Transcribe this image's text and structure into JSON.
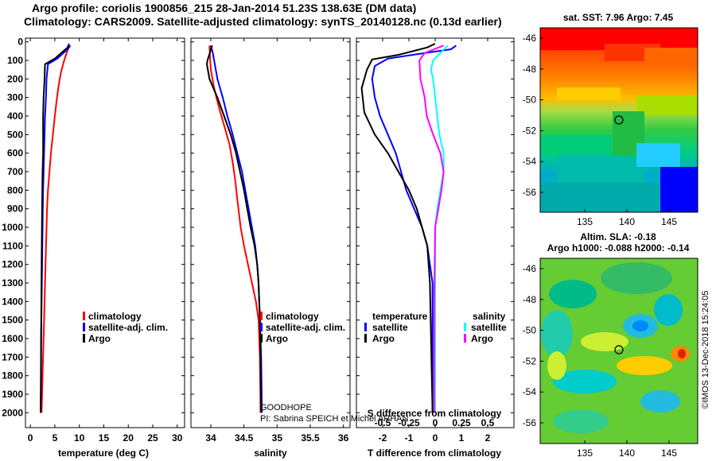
{
  "header": {
    "line1": "Argo profile: coriolis 1900856_215 28-Jan-2014 51.23S 138.63E (DM data)",
    "line2": "Climatology: CARS2009. Satellite-adjusted climatology: synTS_20140128.nc (0.13d earlier)"
  },
  "maps": {
    "sst_title": "sat. SST: 7.96 Argo: 7.45",
    "sla_title1": "Altim. SLA: -0.18",
    "sla_title2": "Argo h1000: -0.088 h2000: -0.14",
    "lat_ticks": [
      "-46",
      "-48",
      "-50",
      "-52",
      "-54",
      "-56"
    ],
    "lon_ticks": [
      "135",
      "140",
      "145"
    ],
    "watermark": "©IMOS 13-Dec-2018 15:24:05"
  },
  "chart_data": [
    {
      "type": "line",
      "title": "",
      "xlabel": "temperature (deg C)",
      "ylabel": "",
      "xlim": [
        -1,
        31.5
      ],
      "ylim": [
        2080,
        -20
      ],
      "x_ticks": [
        0,
        5,
        10,
        15,
        20,
        25,
        30
      ],
      "y_ticks": [
        0,
        100,
        200,
        300,
        400,
        500,
        600,
        700,
        800,
        900,
        1000,
        1100,
        1200,
        1300,
        1400,
        1500,
        1600,
        1700,
        1800,
        1900,
        2000
      ],
      "legend": [
        "climatology",
        "satellite-adj. clim.",
        "Argo"
      ],
      "legend_position": "lower-right",
      "series": [
        {
          "name": "climatology",
          "color": "#ff0000",
          "points": [
            [
              8.0,
              20
            ],
            [
              7.4,
              60
            ],
            [
              6.8,
              110
            ],
            [
              6.2,
              170
            ],
            [
              5.7,
              250
            ],
            [
              5.3,
              330
            ],
            [
              5.0,
              400
            ],
            [
              4.6,
              500
            ],
            [
              4.2,
              600
            ],
            [
              3.9,
              700
            ],
            [
              3.6,
              800
            ],
            [
              3.4,
              900
            ],
            [
              3.3,
              1000
            ],
            [
              3.1,
              1200
            ],
            [
              2.9,
              1400
            ],
            [
              2.7,
              1600
            ],
            [
              2.5,
              1800
            ],
            [
              2.3,
              2000
            ]
          ]
        },
        {
          "name": "satellite-adj. clim.",
          "color": "#0000ff",
          "points": [
            [
              8.2,
              20
            ],
            [
              7.6,
              40
            ],
            [
              5.5,
              90
            ],
            [
              3.6,
              120
            ],
            [
              3.3,
              200
            ],
            [
              3.2,
              300
            ],
            [
              3.0,
              400
            ],
            [
              2.9,
              500
            ],
            [
              2.8,
              600
            ],
            [
              2.7,
              700
            ],
            [
              2.6,
              800
            ],
            [
              2.5,
              1000
            ],
            [
              2.4,
              1200
            ],
            [
              2.3,
              1400
            ],
            [
              2.2,
              1600
            ],
            [
              2.2,
              1800
            ],
            [
              2.1,
              2000
            ]
          ]
        },
        {
          "name": "Argo",
          "color": "#000000",
          "points": [
            [
              7.9,
              10
            ],
            [
              7.6,
              30
            ],
            [
              5.0,
              90
            ],
            [
              3.0,
              120
            ],
            [
              2.9,
              200
            ],
            [
              2.7,
              300
            ],
            [
              2.6,
              400
            ],
            [
              2.6,
              600
            ],
            [
              2.5,
              700
            ],
            [
              2.4,
              900
            ],
            [
              2.3,
              1200
            ],
            [
              2.2,
              1600
            ],
            [
              2.1,
              2000
            ]
          ]
        }
      ]
    },
    {
      "type": "line",
      "title": "",
      "xlabel": "salinity",
      "ylabel": "",
      "xlim": [
        33.7,
        36.1
      ],
      "ylim": [
        2080,
        -20
      ],
      "x_ticks": [
        34,
        34.5,
        35,
        35.5,
        36
      ],
      "legend": [
        "climatology",
        "satellite-adj. clim.",
        "Argo"
      ],
      "legend_position": "lower-right",
      "annotations": [
        "GOODHOPE",
        "PI: Sabrina SPEICH et Michel ARHAN"
      ],
      "series": [
        {
          "name": "climatology",
          "color": "#ff0000",
          "points": [
            [
              33.98,
              20
            ],
            [
              33.99,
              100
            ],
            [
              34.0,
              150
            ],
            [
              34.05,
              250
            ],
            [
              34.12,
              350
            ],
            [
              34.2,
              450
            ],
            [
              34.28,
              550
            ],
            [
              34.33,
              650
            ],
            [
              34.37,
              750
            ],
            [
              34.4,
              850
            ],
            [
              34.45,
              1000
            ],
            [
              34.5,
              1100
            ],
            [
              34.56,
              1200
            ],
            [
              34.62,
              1300
            ],
            [
              34.68,
              1400
            ],
            [
              34.72,
              1500
            ],
            [
              34.74,
              1700
            ],
            [
              34.75,
              2000
            ]
          ]
        },
        {
          "name": "satellite-adj. clim.",
          "color": "#0000ff",
          "points": [
            [
              34.0,
              20
            ],
            [
              34.03,
              60
            ],
            [
              34.06,
              120
            ],
            [
              34.1,
              200
            ],
            [
              34.18,
              300
            ],
            [
              34.25,
              400
            ],
            [
              34.33,
              500
            ],
            [
              34.4,
              600
            ],
            [
              34.47,
              700
            ],
            [
              34.52,
              800
            ],
            [
              34.57,
              900
            ],
            [
              34.62,
              1000
            ],
            [
              34.67,
              1100
            ],
            [
              34.7,
              1200
            ],
            [
              34.72,
              1300
            ],
            [
              34.74,
              1500
            ],
            [
              34.76,
              1700
            ],
            [
              34.77,
              2000
            ]
          ]
        },
        {
          "name": "Argo",
          "color": "#000000",
          "points": [
            [
              34.02,
              20
            ],
            [
              33.95,
              100
            ],
            [
              33.94,
              120
            ],
            [
              33.98,
              200
            ],
            [
              34.1,
              300
            ],
            [
              34.2,
              400
            ],
            [
              34.3,
              500
            ],
            [
              34.38,
              600
            ],
            [
              34.44,
              700
            ],
            [
              34.5,
              800
            ],
            [
              34.55,
              900
            ],
            [
              34.6,
              1000
            ],
            [
              34.66,
              1100
            ],
            [
              34.7,
              1200
            ],
            [
              34.72,
              1300
            ],
            [
              34.74,
              1500
            ],
            [
              34.75,
              1700
            ],
            [
              34.76,
              2000
            ]
          ]
        }
      ]
    },
    {
      "type": "line",
      "title": "",
      "xlabel": "T difference from climatology",
      "ylabel": "",
      "xlim": [
        -3,
        3
      ],
      "ylim": [
        2080,
        -20
      ],
      "x_ticks": [
        -2,
        -1,
        0,
        1,
        2
      ],
      "secondary_axis": {
        "label": "S difference from climatology",
        "ticks": [
          "-0.5",
          "-0.25",
          "0",
          "0.25",
          "0.5"
        ],
        "tick_values": [
          -0.5,
          -0.25,
          0,
          0.25,
          0.5
        ],
        "xlim": [
          -0.75,
          0.75
        ]
      },
      "legend": [
        "temperature",
        "satellite",
        "Argo",
        "salinity",
        "satellite",
        "Argo"
      ],
      "legend_position": "lower",
      "series": [
        {
          "name": "temperature satellite",
          "color": "#0000ff",
          "points": [
            [
              0.8,
              20
            ],
            [
              0.6,
              40
            ],
            [
              -0.4,
              60
            ],
            [
              -1.8,
              90
            ],
            [
              -2.3,
              130
            ],
            [
              -2.4,
              200
            ],
            [
              -2.3,
              300
            ],
            [
              -2.1,
              400
            ],
            [
              -1.8,
              500
            ],
            [
              -1.5,
              600
            ],
            [
              -1.3,
              700
            ],
            [
              -1.1,
              800
            ],
            [
              -0.8,
              900
            ],
            [
              -0.5,
              1000
            ],
            [
              -0.3,
              1100
            ],
            [
              -0.1,
              1300
            ],
            [
              -0.1,
              2000
            ]
          ]
        },
        {
          "name": "temperature Argo",
          "color": "#000000",
          "points": [
            [
              0.0,
              10
            ],
            [
              -0.3,
              30
            ],
            [
              -1.4,
              70
            ],
            [
              -2.4,
              95
            ],
            [
              -2.6,
              150
            ],
            [
              -2.8,
              250
            ],
            [
              -2.7,
              380
            ],
            [
              -2.3,
              500
            ],
            [
              -1.8,
              600
            ],
            [
              -1.4,
              700
            ],
            [
              -1.0,
              800
            ],
            [
              -0.7,
              900
            ],
            [
              -0.5,
              1000
            ],
            [
              -0.3,
              1100
            ],
            [
              -0.2,
              1300
            ],
            [
              -0.1,
              2000
            ]
          ]
        },
        {
          "name": "salinity satellite",
          "color": "#00ffff",
          "points": [
            [
              0.12,
              20
            ],
            [
              0.05,
              60
            ],
            [
              -0.02,
              100
            ],
            [
              -0.04,
              150
            ],
            [
              -0.02,
              200
            ],
            [
              0.0,
              300
            ],
            [
              0.02,
              400
            ],
            [
              0.04,
              500
            ],
            [
              0.08,
              600
            ],
            [
              0.08,
              700
            ],
            [
              0.05,
              800
            ],
            [
              0.02,
              900
            ],
            [
              0.0,
              1000
            ],
            [
              0.0,
              1400
            ],
            [
              0.0,
              2000
            ]
          ]
        },
        {
          "name": "salinity Argo",
          "color": "#ff00ff",
          "points": [
            [
              0.08,
              20
            ],
            [
              -0.1,
              60
            ],
            [
              -0.15,
              100
            ],
            [
              -0.14,
              200
            ],
            [
              -0.1,
              300
            ],
            [
              -0.08,
              400
            ],
            [
              -0.02,
              500
            ],
            [
              0.05,
              600
            ],
            [
              0.08,
              700
            ],
            [
              0.06,
              800
            ],
            [
              0.03,
              900
            ],
            [
              0.0,
              1000
            ],
            [
              -0.01,
              1400
            ],
            [
              -0.01,
              2000
            ]
          ]
        }
      ]
    }
  ]
}
